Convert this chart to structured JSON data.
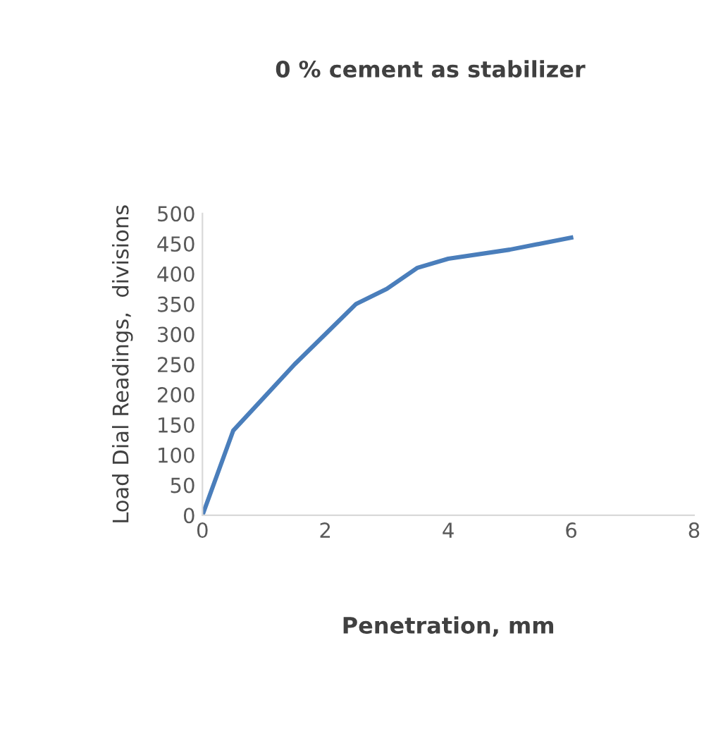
{
  "chart_data": {
    "type": "line",
    "title": "0 % cement as stabilizer",
    "xlabel": "Penetration, mm",
    "ylabel": "Load Dial Readings,  divisions",
    "x": [
      0,
      0.5,
      1,
      1.5,
      2,
      2.5,
      3,
      3.5,
      4,
      5,
      6
    ],
    "series": [
      {
        "color": "#4a7ebb",
        "values": [
          0,
          140,
          195,
          250,
          300,
          350,
          375,
          410,
          425,
          440,
          460
        ]
      }
    ],
    "xlim": [
      0,
      8
    ],
    "xticks": [
      0,
      2,
      4,
      6,
      8
    ],
    "ylim": [
      0,
      500
    ],
    "yticks": [
      0,
      50,
      100,
      150,
      200,
      250,
      300,
      350,
      400,
      450,
      500
    ],
    "grid": false,
    "legend": false,
    "marker": "none",
    "line_style": "solid"
  }
}
